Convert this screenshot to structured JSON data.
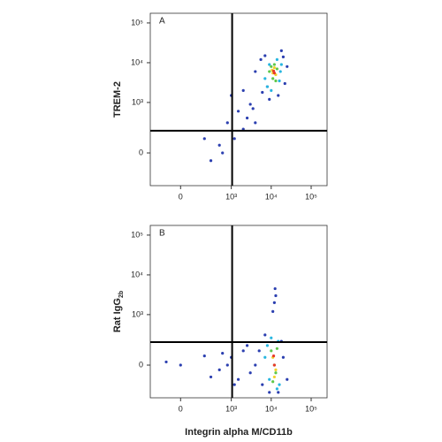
{
  "chart_data": [
    {
      "type": "scatter",
      "panel_label": "A",
      "y_label": "TREM-2",
      "xscale": "biexponential",
      "yscale": "biexponential",
      "xlim": [
        -300,
        250000
      ],
      "ylim": [
        -350,
        175000
      ],
      "xticks": [
        0,
        {
          "value": 1000,
          "label": "10³"
        },
        {
          "value": 10000,
          "label": "10⁴"
        },
        {
          "value": 100000,
          "label": "10⁵"
        }
      ],
      "yticks": [
        0,
        {
          "value": 1000,
          "label": "10³"
        },
        {
          "value": 10000,
          "label": "10⁴"
        },
        {
          "value": 100000,
          "label": "10⁵"
        }
      ],
      "gates": {
        "x": 1050,
        "y": 180
      },
      "groups": [
        {
          "color": "#2b3fb0",
          "x": [
            4000,
            5500,
            7000,
            8000,
            25000,
            22000,
            20000,
            6000,
            9000,
            15000,
            18000,
            3000,
            2500,
            2000,
            1500,
            1200,
            800,
            500,
            300,
            1000,
            2000,
            600,
            4000,
            3500,
            200
          ],
          "y": [
            6000,
            12000,
            15000,
            2500,
            8000,
            3000,
            14000,
            1800,
            1200,
            1500,
            20000,
            900,
            400,
            200,
            600,
            100,
            300,
            50,
            -50,
            1500,
            2000,
            0,
            300,
            700,
            100
          ]
        },
        {
          "color": "#27b6e0",
          "x": [
            7000,
            9000,
            16000,
            18000,
            8000,
            14000,
            10000,
            17000
          ],
          "y": [
            4000,
            9000,
            3500,
            9000,
            2500,
            12000,
            2000,
            6000
          ]
        },
        {
          "color": "#5fc84a",
          "x": [
            9000,
            11000,
            14000,
            13000,
            10000,
            12000
          ],
          "y": [
            6000,
            4000,
            7000,
            3500,
            8000,
            9000
          ]
        },
        {
          "color": "#f2d22c",
          "x": [
            11000,
            13000,
            12000,
            10500
          ],
          "y": [
            5500,
            5000,
            7500,
            6500
          ]
        },
        {
          "color": "#e8382a",
          "x": [
            12000,
            11500
          ],
          "y": [
            5500,
            6200
          ]
        }
      ]
    },
    {
      "type": "scatter",
      "panel_label": "B",
      "y_label": "Rat IgG",
      "y_label_sub": "2b",
      "x_label": "Integrin alpha M/CD11b",
      "xscale": "biexponential",
      "yscale": "biexponential",
      "xlim": [
        -300,
        250000
      ],
      "ylim": [
        -350,
        175000
      ],
      "xticks": [
        0,
        {
          "value": 1000,
          "label": "10³"
        },
        {
          "value": 10000,
          "label": "10⁴"
        },
        {
          "value": 100000,
          "label": "10⁵"
        }
      ],
      "yticks": [
        0,
        {
          "value": 1000,
          "label": "10³"
        },
        {
          "value": 10000,
          "label": "10⁴"
        },
        {
          "value": 100000,
          "label": "10⁵"
        }
      ],
      "gates": {
        "x": 1050,
        "y": 190
      },
      "groups": [
        {
          "color": "#2b3fb0",
          "x": [
            5000,
            6000,
            20000,
            25000,
            18000,
            7000,
            4000,
            3000,
            2000,
            1500,
            1000,
            800,
            500,
            200,
            0,
            -100,
            300,
            2500,
            1200,
            12000,
            13000,
            11000,
            12500,
            9000,
            15000,
            600
          ],
          "y": [
            100,
            -150,
            50,
            -100,
            200,
            300,
            0,
            -50,
            100,
            -100,
            50,
            0,
            -30,
            60,
            0,
            20,
            -80,
            150,
            -150,
            2000,
            3000,
            1200,
            4500,
            -250,
            -250,
            80
          ]
        },
        {
          "color": "#27b6e0",
          "x": [
            8000,
            15000,
            16000,
            9000,
            7000,
            14000,
            10000
          ],
          "y": [
            150,
            200,
            -150,
            -100,
            50,
            -200,
            250
          ]
        },
        {
          "color": "#5fc84a",
          "x": [
            10000,
            13000,
            14000,
            11000,
            12000
          ],
          "y": [
            100,
            -50,
            120,
            -120,
            0
          ]
        },
        {
          "color": "#f2d22c",
          "x": [
            11000,
            13000,
            12000
          ],
          "y": [
            50,
            -30,
            -80
          ]
        },
        {
          "color": "#e8382a",
          "x": [
            12000,
            11500
          ],
          "y": [
            0,
            60
          ]
        }
      ]
    }
  ]
}
